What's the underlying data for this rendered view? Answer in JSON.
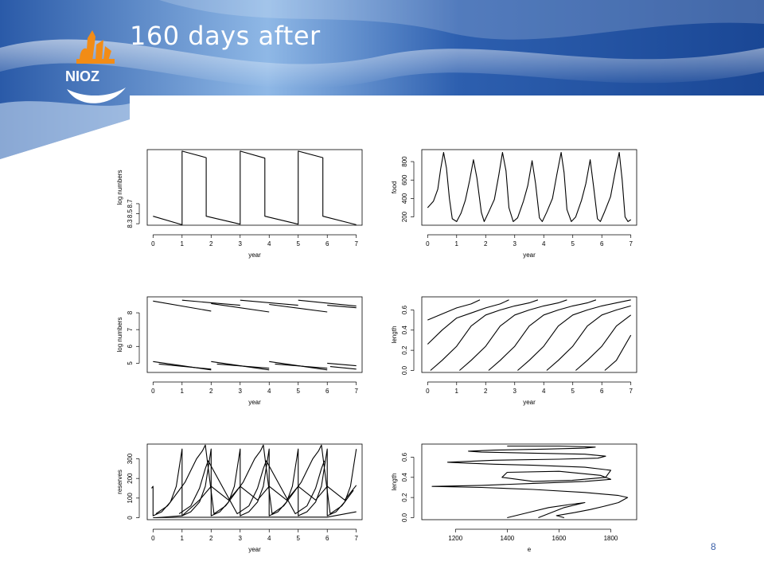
{
  "slide": {
    "title": "160 days after",
    "page_number": "8",
    "logo_text": "NIOZ",
    "colors": {
      "banner_dark": "#1b4a9c",
      "banner_light": "#9cc2ee",
      "line": "#000000"
    }
  },
  "chart_data": [
    {
      "id": "lognumbers-year",
      "type": "line",
      "xlabel": "year",
      "ylabel": "log numbers",
      "xlim": [
        -0.2,
        7.2
      ],
      "ylim": [
        8.27,
        9.78
      ],
      "xticks": [
        "0",
        "1",
        "2",
        "3",
        "4",
        "5",
        "6",
        "7"
      ],
      "yticks": [
        "8.3",
        "8.5",
        "8.7"
      ],
      "ytick_values": [
        8.3,
        8.5,
        8.7
      ],
      "series": [
        {
          "x": [
            0,
            1,
            1,
            1.83,
            1.83,
            3,
            3,
            3.85,
            3.85,
            5,
            5,
            5.85,
            5.85,
            7
          ],
          "y": [
            8.45,
            8.28,
            9.75,
            9.62,
            8.45,
            8.29,
            9.75,
            9.61,
            8.45,
            8.29,
            9.75,
            9.62,
            8.45,
            8.28
          ]
        }
      ]
    },
    {
      "id": "food-year",
      "type": "line",
      "xlabel": "year",
      "ylabel": "food",
      "xlim": [
        -0.2,
        7.2
      ],
      "ylim": [
        110,
        930
      ],
      "xticks": [
        "0",
        "1",
        "2",
        "3",
        "4",
        "5",
        "6",
        "7"
      ],
      "yticks": [
        "200",
        "400",
        "600",
        "800"
      ],
      "ytick_values": [
        200,
        400,
        600,
        800
      ],
      "series": [
        {
          "x": [
            0,
            0.2,
            0.35,
            0.45,
            0.55,
            0.65,
            0.75,
            0.85,
            1.0,
            1.15,
            1.3,
            1.45,
            1.58,
            1.7,
            1.85,
            1.95,
            2.1,
            2.3,
            2.45,
            2.58,
            2.7,
            2.8,
            2.95,
            3.1,
            3.3,
            3.45,
            3.6,
            3.72,
            3.85,
            3.95,
            4.1,
            4.3,
            4.45,
            4.6,
            4.7,
            4.8,
            4.95,
            5.1,
            5.3,
            5.45,
            5.6,
            5.72,
            5.85,
            5.95,
            6.1,
            6.3,
            6.45,
            6.6,
            6.7,
            6.8,
            6.9,
            7.0
          ],
          "y": [
            300,
            370,
            500,
            720,
            900,
            730,
            400,
            180,
            150,
            240,
            380,
            600,
            820,
            620,
            250,
            150,
            250,
            390,
            650,
            900,
            700,
            300,
            150,
            190,
            370,
            540,
            810,
            560,
            190,
            150,
            250,
            400,
            660,
            900,
            680,
            280,
            150,
            200,
            380,
            560,
            820,
            520,
            180,
            150,
            260,
            420,
            670,
            900,
            600,
            200,
            150,
            170
          ]
        }
      ]
    },
    {
      "id": "lognumbers-cohorts",
      "type": "line",
      "xlabel": "year",
      "ylabel": "log numbers",
      "xlim": [
        -0.2,
        7.2
      ],
      "ylim": [
        4.45,
        8.95
      ],
      "xticks": [
        "0",
        "1",
        "2",
        "3",
        "4",
        "5",
        "6",
        "7"
      ],
      "yticks": [
        "5",
        "6",
        "7",
        "8"
      ],
      "ytick_values": [
        5,
        6,
        7,
        8
      ],
      "series": [
        {
          "x": [
            0,
            2
          ],
          "y": [
            8.7,
            8.1
          ]
        },
        {
          "x": [
            1,
            3
          ],
          "y": [
            8.75,
            8.45
          ]
        },
        {
          "x": [
            2,
            4
          ],
          "y": [
            8.55,
            8.05
          ]
        },
        {
          "x": [
            3,
            5
          ],
          "y": [
            8.75,
            8.45
          ]
        },
        {
          "x": [
            4,
            6
          ],
          "y": [
            8.5,
            8.05
          ]
        },
        {
          "x": [
            5,
            7
          ],
          "y": [
            8.75,
            8.4
          ]
        },
        {
          "x": [
            6,
            7
          ],
          "y": [
            8.45,
            8.3
          ]
        },
        {
          "x": [
            0,
            2
          ],
          "y": [
            5.1,
            4.6
          ]
        },
        {
          "x": [
            0.2,
            2
          ],
          "y": [
            4.95,
            4.65
          ]
        },
        {
          "x": [
            2,
            4
          ],
          "y": [
            5.1,
            4.6
          ]
        },
        {
          "x": [
            2.2,
            4
          ],
          "y": [
            4.95,
            4.7
          ]
        },
        {
          "x": [
            4,
            6
          ],
          "y": [
            5.1,
            4.6
          ]
        },
        {
          "x": [
            4.2,
            6
          ],
          "y": [
            4.95,
            4.7
          ]
        },
        {
          "x": [
            6,
            7
          ],
          "y": [
            5.0,
            4.85
          ]
        },
        {
          "x": [
            6.1,
            7
          ],
          "y": [
            4.8,
            4.65
          ]
        }
      ]
    },
    {
      "id": "length-year",
      "type": "line",
      "xlabel": "year",
      "ylabel": "length",
      "xlim": [
        -0.2,
        7.2
      ],
      "ylim": [
        -0.02,
        0.73
      ],
      "xticks": [
        "0",
        "1",
        "2",
        "3",
        "4",
        "5",
        "6",
        "7"
      ],
      "yticks": [
        "0.0",
        "0.2",
        "0.4",
        "0.6"
      ],
      "ytick_values": [
        0.0,
        0.2,
        0.4,
        0.6
      ],
      "series": [
        {
          "x": [
            0,
            0.5,
            1,
            1.5,
            1.8
          ],
          "y": [
            0.5,
            0.56,
            0.62,
            0.66,
            0.7
          ]
        },
        {
          "x": [
            0,
            0.5,
            1,
            1.5,
            2,
            2.5,
            2.8
          ],
          "y": [
            0.26,
            0.4,
            0.52,
            0.57,
            0.62,
            0.66,
            0.7
          ]
        },
        {
          "x": [
            0.1,
            0.5,
            1,
            1.5,
            2,
            2.5,
            3,
            3.5,
            3.8
          ],
          "y": [
            0.0,
            0.1,
            0.24,
            0.44,
            0.55,
            0.6,
            0.64,
            0.67,
            0.7
          ]
        },
        {
          "x": [
            1.1,
            1.5,
            2,
            2.5,
            3,
            3.5,
            4,
            4.5,
            4.8
          ],
          "y": [
            0.0,
            0.1,
            0.24,
            0.44,
            0.55,
            0.6,
            0.64,
            0.67,
            0.7
          ]
        },
        {
          "x": [
            2.1,
            2.5,
            3,
            3.5,
            4,
            4.5,
            5,
            5.5,
            5.8
          ],
          "y": [
            0.0,
            0.1,
            0.24,
            0.44,
            0.55,
            0.6,
            0.64,
            0.67,
            0.7
          ]
        },
        {
          "x": [
            3.1,
            3.5,
            4,
            4.5,
            5,
            5.5,
            6,
            6.5,
            7.0
          ],
          "y": [
            0.0,
            0.1,
            0.24,
            0.44,
            0.55,
            0.6,
            0.64,
            0.67,
            0.7
          ]
        },
        {
          "x": [
            4.1,
            4.5,
            5,
            5.5,
            6,
            6.5,
            7.0
          ],
          "y": [
            0.0,
            0.1,
            0.24,
            0.44,
            0.55,
            0.6,
            0.64
          ]
        },
        {
          "x": [
            5.1,
            5.5,
            6,
            6.5,
            7.0
          ],
          "y": [
            0.0,
            0.1,
            0.24,
            0.44,
            0.55
          ]
        },
        {
          "x": [
            6.1,
            6.5,
            7.0
          ],
          "y": [
            0.0,
            0.1,
            0.35
          ]
        }
      ]
    },
    {
      "id": "reserves-year",
      "type": "line",
      "xlabel": "year",
      "ylabel": "reserves",
      "xlim": [
        -0.2,
        7.2
      ],
      "ylim": [
        -10,
        375
      ],
      "xticks": [
        "0",
        "1",
        "2",
        "3",
        "4",
        "5",
        "6",
        "7"
      ],
      "yticks": [
        "0",
        "100",
        "200",
        "300"
      ],
      "ytick_values": [
        0,
        100,
        200,
        300
      ],
      "series": [
        {
          "x": [
            -0.05,
            0,
            0,
            0.3,
            0.6,
            0.8,
            1.0,
            1.0,
            1.3,
            1.6,
            1.8,
            2.0,
            2.0,
            2.3,
            2.6,
            2.8,
            3.0,
            3.0,
            3.3,
            3.6,
            3.8,
            4.0,
            4.0,
            4.3,
            4.6,
            4.8,
            5.0,
            5.0,
            5.3,
            5.6,
            5.8,
            6.0,
            6.0,
            6.3,
            6.6,
            6.8,
            7.0
          ],
          "y": [
            150,
            160,
            10,
            30,
            80,
            160,
            350,
            10,
            30,
            80,
            160,
            350,
            10,
            30,
            80,
            160,
            350,
            10,
            30,
            80,
            160,
            350,
            10,
            30,
            80,
            160,
            350,
            10,
            30,
            80,
            160,
            350,
            10,
            30,
            80,
            160,
            350
          ]
        },
        {
          "x": [
            0.1,
            0.5,
            0.9,
            1.1,
            1.3,
            1.5,
            1.7,
            1.8,
            2.1,
            2.5,
            2.9,
            3.1,
            3.3,
            3.5,
            3.7,
            3.8,
            4.1,
            4.5,
            4.9,
            5.1,
            5.3,
            5.5,
            5.7,
            5.8,
            6.1,
            6.5,
            6.9
          ],
          "y": [
            20,
            60,
            140,
            180,
            240,
            300,
            340,
            370,
            20,
            60,
            140,
            180,
            240,
            300,
            340,
            370,
            20,
            60,
            140,
            180,
            240,
            300,
            340,
            370,
            20,
            60,
            140
          ]
        },
        {
          "x": [
            0.9,
            1.3,
            1.6,
            1.8,
            1.9,
            2.9,
            3.3,
            3.6,
            3.8,
            3.9,
            4.9,
            5.3,
            5.6,
            5.8,
            5.9
          ],
          "y": [
            20,
            60,
            150,
            250,
            290,
            20,
            60,
            150,
            250,
            290,
            20,
            60,
            150,
            250,
            290
          ]
        },
        {
          "x": [
            0.1,
            1.0,
            1.6,
            2.0,
            2.6,
            3.0,
            3.6,
            4.0,
            4.6,
            5.0,
            5.6,
            6.0,
            6.6,
            7.0
          ],
          "y": [
            0,
            10,
            90,
            160,
            90,
            160,
            90,
            160,
            90,
            160,
            90,
            160,
            90,
            165
          ]
        },
        {
          "x": [
            0,
            1,
            2,
            3,
            4,
            5,
            6,
            7
          ],
          "y": [
            0,
            2,
            2,
            3,
            3,
            3,
            3,
            30
          ]
        }
      ]
    },
    {
      "id": "length-e",
      "type": "line",
      "xlabel": "e",
      "ylabel": "length",
      "xlim": [
        1070,
        1900
      ],
      "ylim": [
        -0.02,
        0.73
      ],
      "xticks": [
        "1200",
        "1400",
        "1600",
        "1800"
      ],
      "xtick_values": [
        1200,
        1400,
        1600,
        1800
      ],
      "yticks": [
        "0.0",
        "0.2",
        "0.4",
        "0.6"
      ],
      "ytick_values": [
        0.0,
        0.2,
        0.4,
        0.6
      ],
      "series": [
        {
          "x": [
            1620,
            1590,
            1660,
            1720,
            1770,
            1830,
            1865,
            1830,
            1700,
            1500,
            1300,
            1110,
            1300,
            1500,
            1700,
            1800,
            1760,
            1600,
            1400,
            1380,
            1500,
            1650,
            1780,
            1800,
            1700,
            1500,
            1350,
            1250,
            1170,
            1350,
            1600,
            1750,
            1780,
            1700,
            1500,
            1300,
            1250,
            1350,
            1550,
            1700,
            1740,
            1600,
            1400
          ],
          "y": [
            0.0,
            0.02,
            0.05,
            0.08,
            0.11,
            0.15,
            0.2,
            0.22,
            0.25,
            0.28,
            0.3,
            0.31,
            0.32,
            0.34,
            0.36,
            0.38,
            0.42,
            0.46,
            0.45,
            0.4,
            0.36,
            0.37,
            0.4,
            0.47,
            0.5,
            0.52,
            0.53,
            0.54,
            0.55,
            0.57,
            0.58,
            0.59,
            0.61,
            0.63,
            0.64,
            0.65,
            0.66,
            0.67,
            0.68,
            0.69,
            0.7,
            0.71,
            0.71
          ]
        },
        {
          "x": [
            1400,
            1480,
            1560,
            1640,
            1700,
            1620,
            1520
          ],
          "y": [
            0.0,
            0.05,
            0.1,
            0.13,
            0.15,
            0.1,
            0.0
          ]
        }
      ]
    }
  ]
}
